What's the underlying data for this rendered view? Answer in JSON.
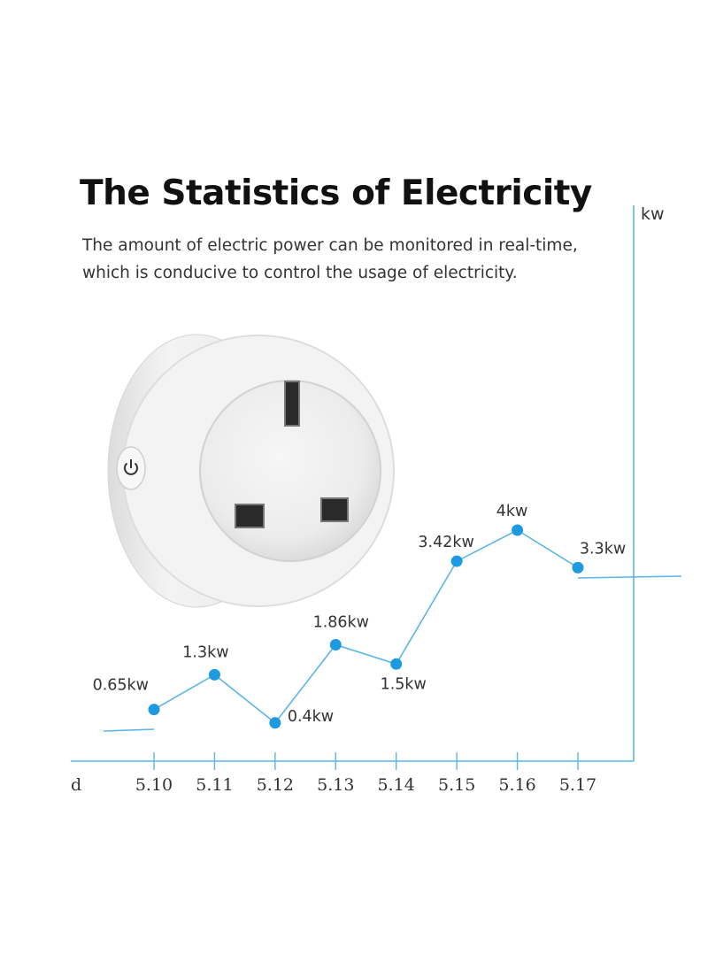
{
  "header": {
    "title": "The Statistics of Electricity",
    "subtitle_lines": [
      "The amount of electric power can be monitored in real-time,",
      "which is conducive to control the usage of electricity."
    ]
  },
  "product": {
    "power_button": "power-icon"
  },
  "colors": {
    "accent": "#5bb6e6",
    "marker": "#1e9ae0",
    "text": "#333333"
  },
  "chart_data": {
    "type": "line",
    "categories": [
      "5.10",
      "5.11",
      "5.12",
      "5.13",
      "5.14",
      "5.15",
      "5.16",
      "5.17"
    ],
    "values": [
      0.65,
      1.3,
      0.4,
      1.86,
      1.5,
      3.42,
      4,
      3.3
    ],
    "data_labels": [
      "0.65kw",
      "1.3kw",
      "0.4kw",
      "1.86kw",
      "1.5kw",
      "3.42kw",
      "4kw",
      "3.3kw"
    ],
    "xlabel": "d",
    "ylabel": "kw",
    "grid": false
  }
}
